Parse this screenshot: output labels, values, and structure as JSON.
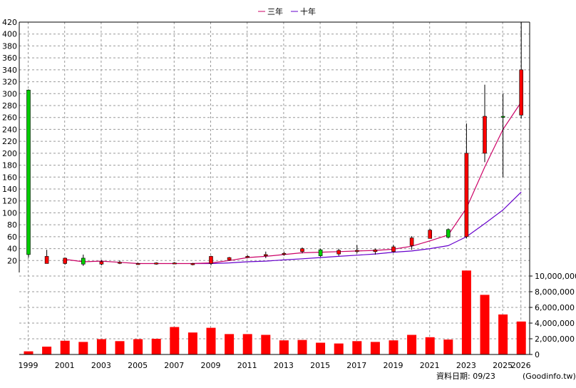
{
  "chart_data": {
    "type": "candlestick-with-volume",
    "legend": [
      {
        "name": "三年",
        "color": "#cc0066"
      },
      {
        "name": "十年",
        "color": "#6600cc"
      }
    ],
    "legend_position": "top-center",
    "grid": true,
    "x_tick_labels": [
      "1999",
      "2001",
      "2003",
      "2005",
      "2007",
      "2009",
      "2011",
      "2013",
      "2015",
      "2017",
      "2019",
      "2021",
      "2023",
      "2025",
      "2026"
    ],
    "price_axis": {
      "ylim": [
        0,
        420
      ],
      "ticks": [
        20,
        40,
        60,
        80,
        100,
        120,
        140,
        160,
        180,
        200,
        220,
        240,
        260,
        280,
        300,
        320,
        340,
        360,
        380,
        400,
        420
      ]
    },
    "volume_axis": {
      "ylim": [
        0,
        11000000
      ],
      "ticks": [
        0,
        2000000,
        4000000,
        6000000,
        8000000,
        10000000
      ],
      "tick_labels": [
        "0",
        "2,000,000",
        "4,000,000",
        "6,000,000",
        "8,000,000",
        "10,000,000"
      ]
    },
    "candles": [
      {
        "year": "1999",
        "open": 30,
        "high": 307,
        "low": 25,
        "close": 306
      },
      {
        "year": "2000",
        "open": 27,
        "high": 38,
        "low": 15,
        "close": 15
      },
      {
        "year": "2001",
        "open": 24,
        "high": 25,
        "low": 13,
        "close": 15
      },
      {
        "year": "2002",
        "open": 14,
        "high": 30,
        "low": 11,
        "close": 24
      },
      {
        "year": "2003",
        "open": 18,
        "high": 21,
        "low": 12,
        "close": 14
      },
      {
        "year": "2004",
        "open": 17,
        "high": 20,
        "low": 14,
        "close": 16
      },
      {
        "year": "2005",
        "open": 15,
        "high": 16,
        "low": 13,
        "close": 14
      },
      {
        "year": "2006",
        "open": 16,
        "high": 17,
        "low": 13,
        "close": 14
      },
      {
        "year": "2007",
        "open": 16,
        "high": 17,
        "low": 14,
        "close": 15
      },
      {
        "year": "2008",
        "open": 15,
        "high": 16,
        "low": 12,
        "close": 13
      },
      {
        "year": "2009",
        "open": 27,
        "high": 28,
        "low": 12,
        "close": 15
      },
      {
        "year": "2010",
        "open": 25,
        "high": 26,
        "low": 20,
        "close": 21
      },
      {
        "year": "2011",
        "open": 27,
        "high": 29,
        "low": 25,
        "close": 26
      },
      {
        "year": "2012",
        "open": 30,
        "high": 35,
        "low": 24,
        "close": 28
      },
      {
        "year": "2013",
        "open": 32,
        "high": 35,
        "low": 28,
        "close": 31
      },
      {
        "year": "2014",
        "open": 40,
        "high": 42,
        "low": 32,
        "close": 35
      },
      {
        "year": "2015",
        "open": 28,
        "high": 40,
        "low": 26,
        "close": 38
      },
      {
        "year": "2016",
        "open": 37,
        "high": 40,
        "low": 28,
        "close": 31
      },
      {
        "year": "2017",
        "open": 37,
        "high": 46,
        "low": 32,
        "close": 36
      },
      {
        "year": "2018",
        "open": 38,
        "high": 40,
        "low": 30,
        "close": 35
      },
      {
        "year": "2019",
        "open": 43,
        "high": 46,
        "low": 33,
        "close": 35
      },
      {
        "year": "2020",
        "open": 58,
        "high": 61,
        "low": 38,
        "close": 45
      },
      {
        "year": "2021",
        "open": 71,
        "high": 73,
        "low": 57,
        "close": 57
      },
      {
        "year": "2022",
        "open": 59,
        "high": 74,
        "low": 57,
        "close": 72
      },
      {
        "year": "2023",
        "open": 200,
        "high": 250,
        "low": 57,
        "close": 60
      },
      {
        "year": "2024",
        "open": 262,
        "high": 315,
        "low": 185,
        "close": 200
      },
      {
        "year": "2025",
        "open": 262,
        "high": 300,
        "low": 160,
        "close": 262
      },
      {
        "year": "2026",
        "open": 340,
        "high": 420,
        "low": 258,
        "close": 264
      }
    ],
    "ma3": [
      {
        "year": "2001",
        "value": 22
      },
      {
        "year": "2002",
        "value": 18
      },
      {
        "year": "2003",
        "value": 19
      },
      {
        "year": "2004",
        "value": 17
      },
      {
        "year": "2005",
        "value": 15
      },
      {
        "year": "2006",
        "value": 15
      },
      {
        "year": "2007",
        "value": 15
      },
      {
        "year": "2008",
        "value": 15
      },
      {
        "year": "2009",
        "value": 16
      },
      {
        "year": "2010",
        "value": 20
      },
      {
        "year": "2011",
        "value": 25
      },
      {
        "year": "2012",
        "value": 27
      },
      {
        "year": "2013",
        "value": 30
      },
      {
        "year": "2014",
        "value": 33
      },
      {
        "year": "2015",
        "value": 34
      },
      {
        "year": "2016",
        "value": 35
      },
      {
        "year": "2017",
        "value": 36
      },
      {
        "year": "2018",
        "value": 37
      },
      {
        "year": "2019",
        "value": 39
      },
      {
        "year": "2020",
        "value": 44
      },
      {
        "year": "2021",
        "value": 53
      },
      {
        "year": "2022",
        "value": 63
      },
      {
        "year": "2023",
        "value": 108
      },
      {
        "year": "2024",
        "value": 177
      },
      {
        "year": "2025",
        "value": 240
      },
      {
        "year": "2026",
        "value": 286
      }
    ],
    "ma10": [
      {
        "year": "2008",
        "value": 15
      },
      {
        "year": "2009",
        "value": 15
      },
      {
        "year": "2010",
        "value": 16
      },
      {
        "year": "2011",
        "value": 18
      },
      {
        "year": "2012",
        "value": 19
      },
      {
        "year": "2013",
        "value": 21
      },
      {
        "year": "2014",
        "value": 23
      },
      {
        "year": "2015",
        "value": 25
      },
      {
        "year": "2016",
        "value": 27
      },
      {
        "year": "2017",
        "value": 29
      },
      {
        "year": "2018",
        "value": 31
      },
      {
        "year": "2019",
        "value": 34
      },
      {
        "year": "2020",
        "value": 36
      },
      {
        "year": "2021",
        "value": 40
      },
      {
        "year": "2022",
        "value": 45
      },
      {
        "year": "2023",
        "value": 60
      },
      {
        "year": "2024",
        "value": 82
      },
      {
        "year": "2025",
        "value": 105
      },
      {
        "year": "2026",
        "value": 135
      }
    ],
    "volume": [
      {
        "year": "1999",
        "value": 400000
      },
      {
        "year": "2000",
        "value": 1000000
      },
      {
        "year": "2001",
        "value": 1750000
      },
      {
        "year": "2002",
        "value": 1600000
      },
      {
        "year": "2003",
        "value": 1950000
      },
      {
        "year": "2004",
        "value": 1700000
      },
      {
        "year": "2005",
        "value": 1950000
      },
      {
        "year": "2006",
        "value": 2000000
      },
      {
        "year": "2007",
        "value": 3500000
      },
      {
        "year": "2008",
        "value": 2800000
      },
      {
        "year": "2009",
        "value": 3400000
      },
      {
        "year": "2010",
        "value": 2600000
      },
      {
        "year": "2011",
        "value": 2600000
      },
      {
        "year": "2012",
        "value": 2500000
      },
      {
        "year": "2013",
        "value": 1800000
      },
      {
        "year": "2014",
        "value": 1850000
      },
      {
        "year": "2015",
        "value": 1500000
      },
      {
        "year": "2016",
        "value": 1400000
      },
      {
        "year": "2017",
        "value": 1700000
      },
      {
        "year": "2018",
        "value": 1600000
      },
      {
        "year": "2019",
        "value": 1800000
      },
      {
        "year": "2020",
        "value": 2500000
      },
      {
        "year": "2021",
        "value": 2200000
      },
      {
        "year": "2022",
        "value": 1900000
      },
      {
        "year": "2023",
        "value": 10700000
      },
      {
        "year": "2024",
        "value": 7600000
      },
      {
        "year": "2025",
        "value": 5100000
      },
      {
        "year": "2026",
        "value": 4200000
      }
    ],
    "colors": {
      "up": "#ff0000",
      "down": "#00cc00",
      "volume": "#ff0000",
      "grid": "#999999"
    }
  },
  "footer": {
    "data_date": "資料日期: 09/23",
    "source": "(Goodinfo.tw)"
  }
}
